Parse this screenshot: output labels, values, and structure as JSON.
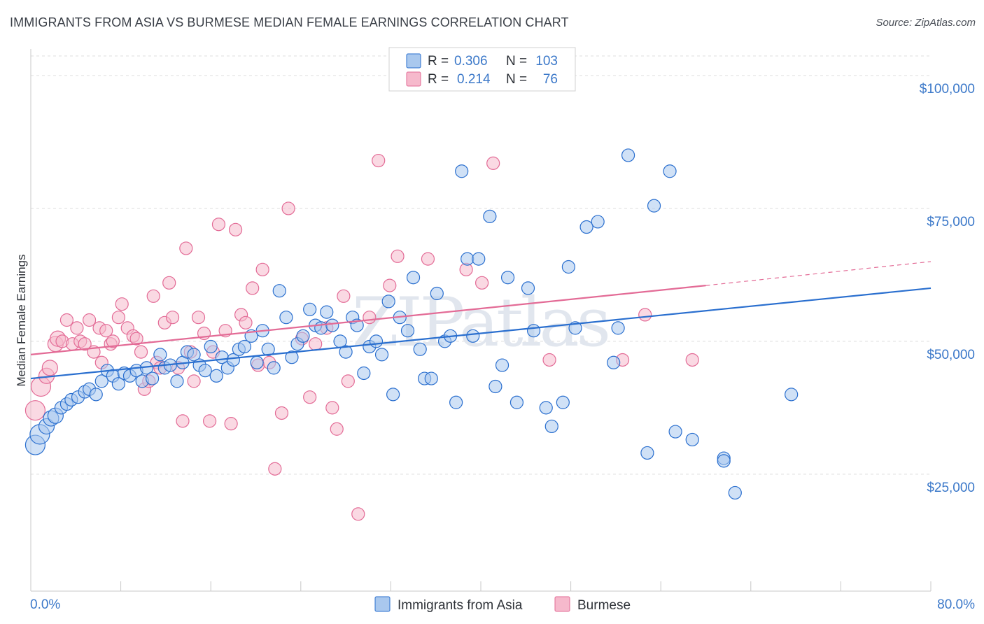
{
  "title": "IMMIGRANTS FROM ASIA VS BURMESE MEDIAN FEMALE EARNINGS CORRELATION CHART",
  "source": "Source: ZipAtlas.com",
  "watermark": "ZIPatlas",
  "colors": {
    "blue": "#2a6fcf",
    "blue_fill": "#a9c8ee",
    "pink": "#e36b96",
    "pink_fill": "#f6b9cc",
    "grid": "#dcdcdc",
    "axis_label": "#3b78c9"
  },
  "legend": {
    "r_label": "R =",
    "n_label": "N =",
    "rows": [
      {
        "series": "Immigrants from Asia",
        "r": "0.306",
        "n": "103"
      },
      {
        "series": "Burmese",
        "r": "0.214",
        "n": "76"
      }
    ]
  },
  "chart_data": {
    "type": "scatter",
    "title": "IMMIGRANTS FROM ASIA VS BURMESE MEDIAN FEMALE EARNINGS CORRELATION CHART",
    "xlabel": "",
    "ylabel": "Median Female Earnings",
    "xlim": [
      0,
      80
    ],
    "ylim": [
      3000,
      105000
    ],
    "x_tick_labels": [
      "0.0%",
      "80.0%"
    ],
    "y_ticks": [
      25000,
      50000,
      75000,
      100000
    ],
    "y_tick_labels": [
      "$25,000",
      "$50,000",
      "$75,000",
      "$100,000"
    ],
    "grid": true,
    "legend_position": "top-center",
    "series": [
      {
        "name": "Immigrants from Asia",
        "color": "blue",
        "trend": {
          "x": [
            0,
            80
          ],
          "y": [
            43000,
            60000
          ]
        },
        "points": [
          [
            0.4,
            30500
          ],
          [
            0.8,
            32500
          ],
          [
            1.4,
            34000
          ],
          [
            1.8,
            35500
          ],
          [
            2.2,
            36000
          ],
          [
            2.7,
            37500
          ],
          [
            3.2,
            38200
          ],
          [
            3.6,
            39000
          ],
          [
            4.2,
            39500
          ],
          [
            4.8,
            40500
          ],
          [
            5.2,
            41000
          ],
          [
            5.8,
            40000
          ],
          [
            6.3,
            42500
          ],
          [
            6.8,
            44500
          ],
          [
            7.3,
            43500
          ],
          [
            7.8,
            42000
          ],
          [
            8.3,
            44000
          ],
          [
            8.8,
            43500
          ],
          [
            9.4,
            44500
          ],
          [
            9.9,
            42500
          ],
          [
            10.3,
            45000
          ],
          [
            10.8,
            43000
          ],
          [
            11.5,
            47500
          ],
          [
            11.9,
            45000
          ],
          [
            12.4,
            45500
          ],
          [
            13.0,
            42500
          ],
          [
            13.5,
            46000
          ],
          [
            13.9,
            48000
          ],
          [
            14.5,
            47500
          ],
          [
            15.0,
            45500
          ],
          [
            15.5,
            44500
          ],
          [
            16.0,
            49000
          ],
          [
            16.5,
            43500
          ],
          [
            17.0,
            47000
          ],
          [
            17.5,
            45000
          ],
          [
            18.0,
            46500
          ],
          [
            18.5,
            48500
          ],
          [
            19.0,
            49000
          ],
          [
            19.6,
            51000
          ],
          [
            20.1,
            46000
          ],
          [
            20.6,
            52000
          ],
          [
            21.1,
            48500
          ],
          [
            21.6,
            45000
          ],
          [
            22.1,
            59500
          ],
          [
            22.7,
            54500
          ],
          [
            23.2,
            47000
          ],
          [
            23.7,
            49500
          ],
          [
            24.2,
            51000
          ],
          [
            24.8,
            56000
          ],
          [
            25.3,
            53000
          ],
          [
            25.8,
            52500
          ],
          [
            26.3,
            55500
          ],
          [
            26.8,
            53000
          ],
          [
            27.5,
            50000
          ],
          [
            28.0,
            48000
          ],
          [
            28.6,
            54500
          ],
          [
            29.0,
            53000
          ],
          [
            29.6,
            44000
          ],
          [
            30.1,
            49000
          ],
          [
            30.7,
            50000
          ],
          [
            31.2,
            47500
          ],
          [
            31.8,
            57500
          ],
          [
            32.2,
            40000
          ],
          [
            32.8,
            54500
          ],
          [
            33.5,
            52000
          ],
          [
            34.0,
            62000
          ],
          [
            34.6,
            48500
          ],
          [
            35.0,
            43000
          ],
          [
            35.6,
            43000
          ],
          [
            36.1,
            59000
          ],
          [
            36.8,
            50000
          ],
          [
            37.3,
            51000
          ],
          [
            37.8,
            38500
          ],
          [
            38.3,
            82000
          ],
          [
            38.8,
            65500
          ],
          [
            39.3,
            51000
          ],
          [
            39.8,
            65500
          ],
          [
            40.8,
            73500
          ],
          [
            41.3,
            41500
          ],
          [
            41.9,
            45500
          ],
          [
            42.4,
            62000
          ],
          [
            43.2,
            38500
          ],
          [
            44.2,
            60000
          ],
          [
            44.7,
            52000
          ],
          [
            45.8,
            37500
          ],
          [
            46.3,
            34000
          ],
          [
            47.3,
            38500
          ],
          [
            47.8,
            64000
          ],
          [
            48.4,
            52500
          ],
          [
            49.4,
            71500
          ],
          [
            50.4,
            72500
          ],
          [
            51.8,
            46000
          ],
          [
            52.2,
            52500
          ],
          [
            53.1,
            85000
          ],
          [
            54.8,
            29000
          ],
          [
            55.4,
            75500
          ],
          [
            56.8,
            82000
          ],
          [
            57.3,
            33000
          ],
          [
            58.8,
            31500
          ],
          [
            61.6,
            28000
          ],
          [
            61.6,
            27500
          ],
          [
            62.6,
            21500
          ],
          [
            67.6,
            40000
          ]
        ]
      },
      {
        "name": "Burmese",
        "color": "pink",
        "trend": {
          "x": [
            0,
            60
          ],
          "y": [
            47500,
            60500
          ]
        },
        "trend_extension": {
          "x": [
            60,
            80
          ],
          "y": [
            60500,
            65000
          ]
        },
        "points": [
          [
            0.4,
            37000
          ],
          [
            0.9,
            41500
          ],
          [
            1.4,
            43500
          ],
          [
            1.7,
            45000
          ],
          [
            2.2,
            49500
          ],
          [
            2.4,
            50500
          ],
          [
            2.8,
            50000
          ],
          [
            3.2,
            54000
          ],
          [
            3.7,
            49500
          ],
          [
            4.1,
            52500
          ],
          [
            4.4,
            50000
          ],
          [
            4.8,
            49500
          ],
          [
            5.2,
            54000
          ],
          [
            5.6,
            48000
          ],
          [
            6.1,
            52500
          ],
          [
            6.3,
            46000
          ],
          [
            6.7,
            52000
          ],
          [
            7.1,
            49500
          ],
          [
            7.3,
            50000
          ],
          [
            7.8,
            54500
          ],
          [
            8.1,
            57000
          ],
          [
            8.6,
            52500
          ],
          [
            9.1,
            51000
          ],
          [
            9.4,
            50500
          ],
          [
            9.8,
            48000
          ],
          [
            10.1,
            41000
          ],
          [
            10.5,
            42500
          ],
          [
            10.9,
            58500
          ],
          [
            11.2,
            46000
          ],
          [
            11.5,
            45000
          ],
          [
            11.9,
            53500
          ],
          [
            12.3,
            61000
          ],
          [
            12.6,
            54500
          ],
          [
            13.1,
            45000
          ],
          [
            13.5,
            35000
          ],
          [
            13.8,
            67500
          ],
          [
            14.2,
            48000
          ],
          [
            14.5,
            42500
          ],
          [
            14.9,
            54500
          ],
          [
            15.4,
            51500
          ],
          [
            15.9,
            35000
          ],
          [
            16.2,
            48000
          ],
          [
            16.7,
            72000
          ],
          [
            17.3,
            52000
          ],
          [
            17.8,
            34500
          ],
          [
            18.2,
            71000
          ],
          [
            18.7,
            55000
          ],
          [
            19.1,
            53500
          ],
          [
            19.7,
            60000
          ],
          [
            20.2,
            45500
          ],
          [
            20.6,
            63500
          ],
          [
            21.2,
            46000
          ],
          [
            21.7,
            26000
          ],
          [
            22.3,
            36500
          ],
          [
            22.9,
            75000
          ],
          [
            24.1,
            50500
          ],
          [
            24.8,
            39500
          ],
          [
            25.3,
            49500
          ],
          [
            26.3,
            52500
          ],
          [
            26.8,
            37500
          ],
          [
            27.2,
            33500
          ],
          [
            27.8,
            58500
          ],
          [
            28.2,
            42500
          ],
          [
            29.1,
            17500
          ],
          [
            30.1,
            54500
          ],
          [
            30.9,
            84000
          ],
          [
            31.9,
            60500
          ],
          [
            32.6,
            66000
          ],
          [
            35.3,
            65500
          ],
          [
            38.7,
            63500
          ],
          [
            40.1,
            61000
          ],
          [
            41.1,
            83500
          ],
          [
            46.1,
            46500
          ],
          [
            52.6,
            46500
          ],
          [
            54.6,
            55000
          ],
          [
            58.8,
            46500
          ]
        ]
      }
    ]
  }
}
